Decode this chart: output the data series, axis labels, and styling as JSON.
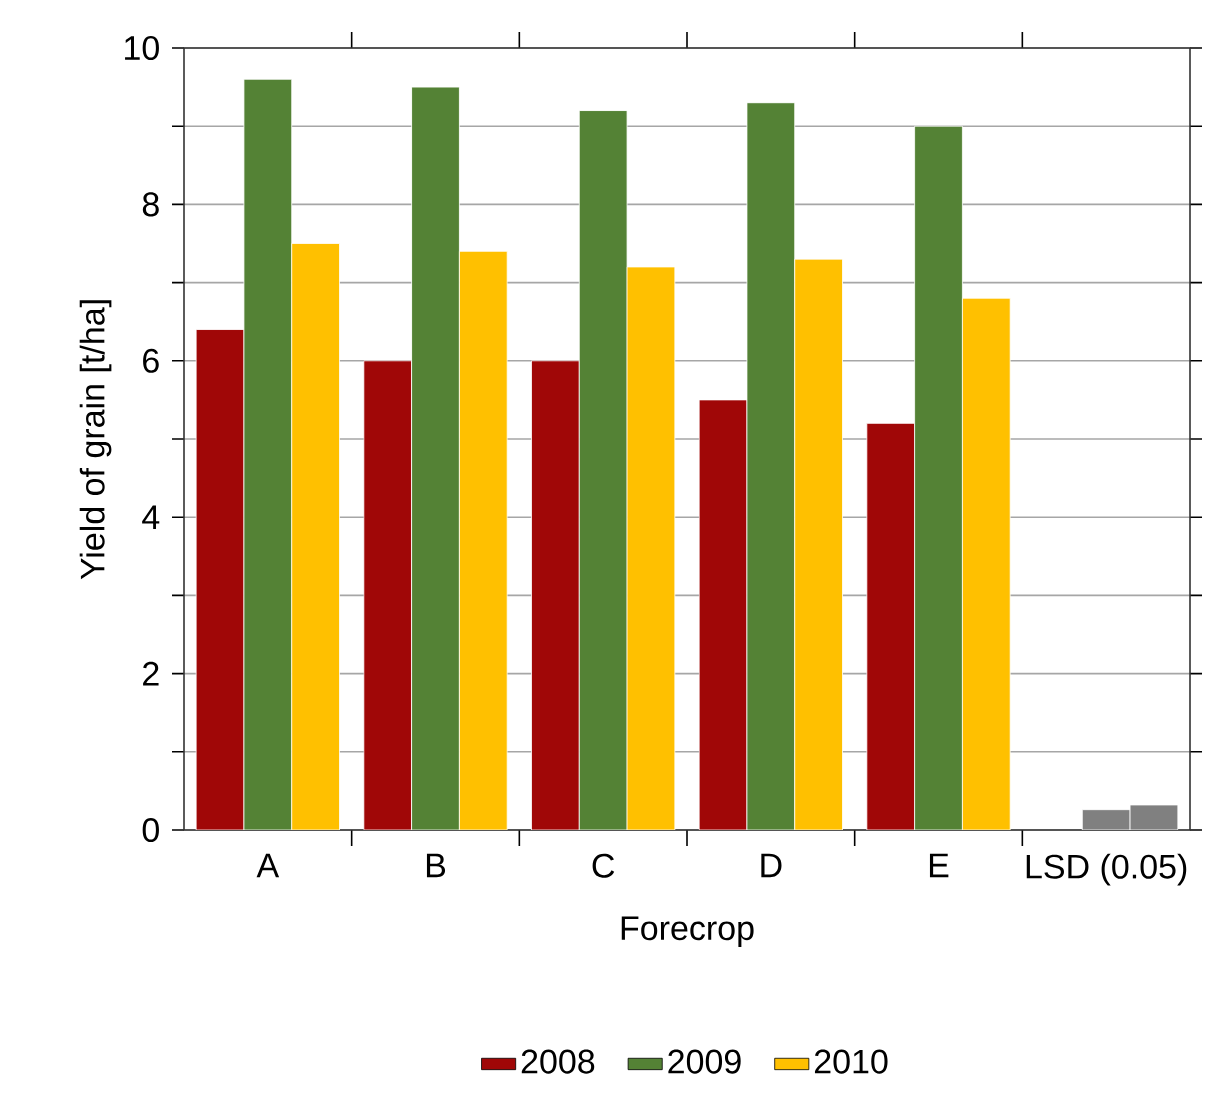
{
  "chart_data": {
    "type": "bar",
    "xlabel": "Forecrop",
    "ylabel": "Yield of grain [t/ha]",
    "categories": [
      "A",
      "B",
      "C",
      "D",
      "E",
      "LSD (0.05)"
    ],
    "series": [
      {
        "name": "2008",
        "color": "#a00707",
        "values": [
          6.4,
          6.0,
          6.0,
          5.5,
          5.2,
          null
        ]
      },
      {
        "name": "2009",
        "color": "#548235",
        "colors": [
          "#548235",
          "#548235",
          "#548235",
          "#548235",
          "#548235",
          "#808080"
        ],
        "values": [
          9.6,
          9.5,
          9.2,
          9.3,
          9.0,
          0.26
        ]
      },
      {
        "name": "2010",
        "color": "#ffc000",
        "colors": [
          "#ffc000",
          "#ffc000",
          "#ffc000",
          "#ffc000",
          "#ffc000",
          "#808080"
        ],
        "values": [
          7.5,
          7.4,
          7.2,
          7.3,
          6.8,
          0.32
        ]
      }
    ],
    "ylim": [
      0,
      10
    ],
    "yticks": [
      0,
      {
        "value": 1,
        "label": null
      },
      2,
      {
        "value": 3,
        "label": null
      },
      4,
      {
        "value": 5,
        "label": null
      },
      6,
      {
        "value": 7,
        "label": null
      },
      8,
      {
        "value": 9,
        "label": null
      },
      10
    ],
    "grid": "y",
    "legend": "bottom"
  }
}
